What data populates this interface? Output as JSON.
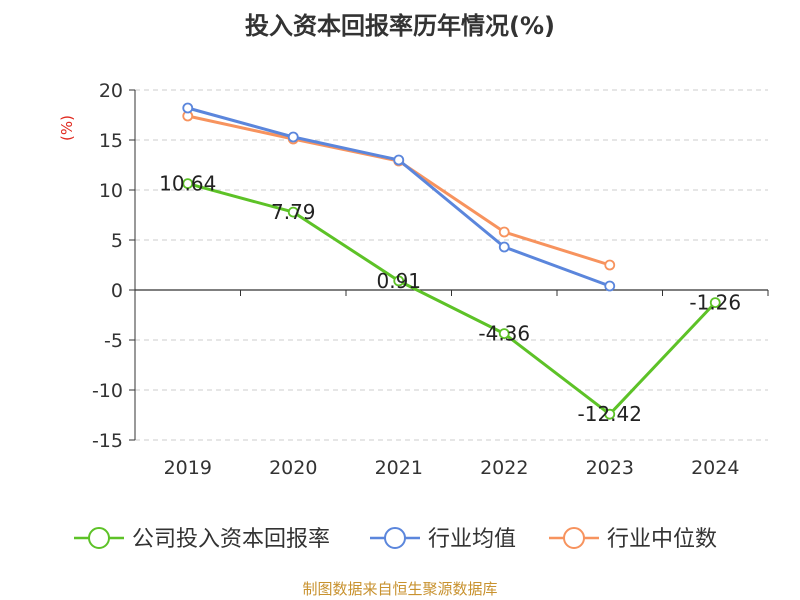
{
  "chart_data": {
    "type": "line",
    "title": "投入资本回报率历年情况(%)",
    "ylabel": "(%)",
    "categories": [
      "2019",
      "2020",
      "2021",
      "2022",
      "2023",
      "2024"
    ],
    "yticks": [
      20,
      15,
      10,
      5,
      0,
      -5,
      -10,
      -15
    ],
    "ylim": [
      -15,
      20
    ],
    "grid": true,
    "legend_position": "bottom",
    "series": [
      {
        "name": "公司投入资本回报率",
        "color": "#5dc227",
        "values": [
          10.64,
          7.79,
          0.91,
          -4.36,
          -12.42,
          -1.26
        ],
        "labels": [
          "10.64",
          "7.79",
          "0.91",
          "-4.36",
          "-12.42",
          "-1.26"
        ]
      },
      {
        "name": "行业均值",
        "color": "#5b86dc",
        "values": [
          18.2,
          15.3,
          13.0,
          4.3,
          0.4,
          null
        ]
      },
      {
        "name": "行业中位数",
        "color": "#f7935e",
        "values": [
          17.4,
          15.1,
          12.9,
          5.8,
          2.5,
          null
        ]
      }
    ],
    "source": "制图数据来自恒生聚源数据库"
  }
}
